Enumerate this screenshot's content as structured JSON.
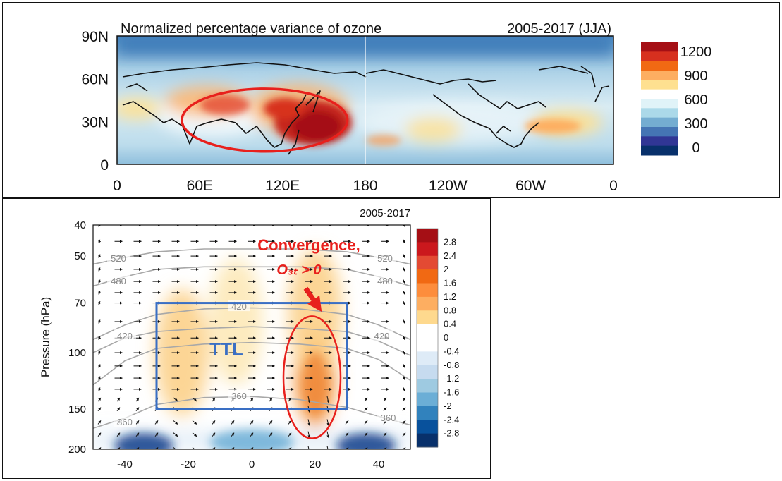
{
  "chart_data": [
    {
      "type": "heatmap",
      "title": "Normalized percentage variance of ozone",
      "period": "2005-2017 (JJA)",
      "xlabel": "",
      "ylabel": "",
      "x_ticks": [
        "0",
        "60E",
        "120E",
        "180",
        "120W",
        "60W",
        "0"
      ],
      "y_ticks": [
        "90N",
        "60N",
        "30N",
        "0"
      ],
      "xlim_deg_east": [
        0,
        360
      ],
      "ylim_deg_north": [
        0,
        90
      ],
      "colorbar": {
        "labels": [
          "1200",
          "900",
          "600",
          "300",
          "0"
        ],
        "colors": [
          "#a50f15",
          "#d7301f",
          "#f16913",
          "#fdae61",
          "#fee090",
          "#ffffff",
          "#e0f3f8",
          "#abd9e9",
          "#74add1",
          "#4575b4",
          "#313695",
          "#08306b"
        ]
      },
      "annotations": [
        {
          "kind": "ellipse",
          "label": "",
          "color": "#e8201c",
          "center_lon_deg_east": 107,
          "center_lat_deg_north": 31,
          "half_width_deg": 60,
          "half_height_deg": 22
        }
      ],
      "hotspots": [
        {
          "region": "East Asia / western Pacific",
          "center_lon_deg_east": 135,
          "center_lat_deg_north": 28,
          "level": 1200
        },
        {
          "region": "Tibetan Plateau / Central Asia",
          "center_lon_deg_east": 70,
          "center_lat_deg_north": 40,
          "level": 900
        },
        {
          "region": "Middle East",
          "center_lon_deg_east": 25,
          "center_lat_deg_north": 30,
          "level": 700
        },
        {
          "region": "Central Pacific",
          "center_lon_deg_east": 190,
          "center_lat_deg_north": 17,
          "level": 800
        },
        {
          "region": "North Atlantic",
          "center_lon_deg_east": 320,
          "center_lat_deg_north": 30,
          "level": 700
        }
      ]
    },
    {
      "type": "heatmap",
      "title": "2005-2017",
      "xlabel": "",
      "ylabel": "Pressure (hPa)",
      "x_ticks": [
        "-40",
        "-20",
        "0",
        "20",
        "40"
      ],
      "y_ticks": [
        "40",
        "50",
        "70",
        "100",
        "150",
        "200"
      ],
      "xlim": [
        -50,
        50
      ],
      "ylim_hpa": [
        200,
        40
      ],
      "y_scale": "log",
      "colorbar": {
        "labels": [
          "2.8",
          "2.4",
          "2",
          "1.6",
          "1.2",
          "0.8",
          "0.4",
          "0",
          "-0.4",
          "-0.8",
          "-1.2",
          "-1.6",
          "-2",
          "-2.4",
          "-2.8"
        ],
        "colors": [
          "#a50f15",
          "#cb181d",
          "#e34a33",
          "#f16913",
          "#fd8d3c",
          "#fdae61",
          "#fed98e",
          "#ffffff",
          "#ffffff",
          "#deebf7",
          "#c6dbef",
          "#9ecae1",
          "#6baed6",
          "#3182bd",
          "#08519c",
          "#08306b"
        ]
      },
      "contours": [
        {
          "label": "520",
          "label_positions": [
            [
              -42,
              51
            ],
            [
              42,
              51
            ]
          ],
          "hpa": [
            53,
            50.5,
            48.5,
            47.5,
            47.5,
            47.5,
            48.5,
            50.5,
            53
          ]
        },
        {
          "label": "480",
          "label_positions": [
            [
              -42,
              60
            ],
            [
              42,
              60
            ]
          ],
          "hpa": [
            62,
            58,
            55,
            54,
            54,
            54,
            55,
            58,
            62
          ]
        },
        {
          "label": "420",
          "label_positions": [
            [
              -40,
              89
            ],
            [
              -4,
              72
            ],
            [
              41,
              89
            ]
          ],
          "hpa": [
            91,
            82,
            76,
            73,
            72.5,
            73,
            76,
            82,
            91
          ]
        },
        {
          "label": "",
          "label_positions": [],
          "hpa": [
            100,
            90,
            86,
            84,
            83,
            84,
            86,
            92,
            102
          ]
        },
        {
          "label": "",
          "label_positions": [],
          "hpa": [
            126,
            106,
            97,
            94,
            93,
            94,
            97,
            105,
            122
          ]
        },
        {
          "label": "360",
          "label_positions": [
            [
              -40,
              165
            ],
            [
              -4,
              137
            ],
            [
              43,
              160
            ]
          ],
          "hpa": [
            172,
            160,
            145,
            138,
            137,
            140,
            148,
            158,
            168
          ]
        }
      ],
      "contour_x": [
        -50,
        -40,
        -30,
        -15,
        0,
        15,
        30,
        40,
        50
      ],
      "wind_pressure_levels_hpa": [
        40,
        45,
        50,
        55,
        60,
        65,
        70,
        80,
        90,
        100,
        110,
        120,
        130,
        140,
        150,
        165,
        180,
        200
      ],
      "wind_x_positions": [
        -48,
        -42,
        -36,
        -30,
        -24,
        -18,
        -12,
        -6,
        0,
        6,
        12,
        18,
        24,
        30,
        36,
        42,
        48
      ],
      "annotations": [
        {
          "kind": "box",
          "label": "TTL",
          "color": "#3a6fc4",
          "x": [
            -30,
            30
          ],
          "p_hpa": [
            70,
            150
          ]
        },
        {
          "kind": "ellipse",
          "label": "",
          "color": "#e8201c",
          "center_x": 19,
          "center_p_hpa": 115,
          "half_width": 9
        },
        {
          "kind": "text",
          "label": "Convergence,",
          "color": "#e8201c",
          "x": 18,
          "p_hpa": 48
        },
        {
          "kind": "text",
          "label": "O₃ₜ > 0",
          "color": "#e8201c",
          "x": 18,
          "p_hpa": 57
        },
        {
          "kind": "arrow",
          "label": "",
          "color": "#e8201c",
          "from": [
            17,
            63
          ],
          "to": [
            21,
            72
          ]
        }
      ],
      "positive_features": [
        {
          "x": -22,
          "p_hpa": 100,
          "value": 0.8
        },
        {
          "x": 20,
          "p_hpa": 120,
          "value": 1.6
        },
        {
          "x": 20,
          "p_hpa": 75,
          "value": 0.6
        },
        {
          "x": -5,
          "p_hpa": 80,
          "value": 0.3
        }
      ],
      "negative_features": [
        {
          "x": -34,
          "p_hpa": 195,
          "value": -2.8
        },
        {
          "x": 36,
          "p_hpa": 195,
          "value": -2.8
        },
        {
          "x": 0,
          "p_hpa": 190,
          "value": -1.6
        }
      ]
    }
  ]
}
